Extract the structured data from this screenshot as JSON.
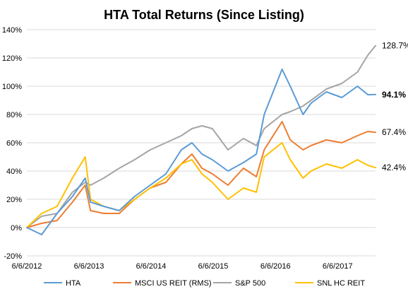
{
  "chart_data": {
    "type": "line",
    "title": "HTA Total Returns (Since Listing)",
    "xlabel": "",
    "ylabel": "",
    "ylim": [
      -20,
      140
    ],
    "y_ticks": [
      "-20%",
      "0%",
      "20%",
      "40%",
      "60%",
      "80%",
      "100%",
      "120%",
      "140%"
    ],
    "x_ticks": [
      "6/6/2012",
      "6/6/2013",
      "6/6/2014",
      "6/6/2015",
      "6/6/2016",
      "6/6/2017"
    ],
    "x_range": [
      "2012-06-06",
      "2018-01-15"
    ],
    "grid": "horizontal",
    "legend_position": "bottom",
    "x": [
      "2012-06-06",
      "2012-09-01",
      "2012-12-01",
      "2013-03-01",
      "2013-05-15",
      "2013-06-15",
      "2013-09-01",
      "2013-12-01",
      "2014-03-01",
      "2014-06-01",
      "2014-09-01",
      "2014-12-01",
      "2015-02-01",
      "2015-04-01",
      "2015-06-01",
      "2015-09-01",
      "2015-12-01",
      "2016-02-15",
      "2016-04-01",
      "2016-07-15",
      "2016-09-01",
      "2016-11-15",
      "2017-01-01",
      "2017-04-01",
      "2017-07-01",
      "2017-10-01",
      "2017-12-01",
      "2018-01-15"
    ],
    "series": [
      {
        "name": "HTA",
        "color": "#5B9BD5",
        "values": [
          0,
          -5,
          10,
          22,
          35,
          18,
          15,
          12,
          22,
          30,
          38,
          55,
          60,
          52,
          48,
          40,
          46,
          52,
          80,
          112,
          100,
          80,
          88,
          96,
          92,
          100,
          94,
          94.1
        ],
        "end_label": "94.1%",
        "end_label_bold": true
      },
      {
        "name": "MSCI US REIT (RMS)",
        "color": "#ED7D31",
        "values": [
          0,
          3,
          5,
          18,
          30,
          12,
          10,
          10,
          20,
          28,
          32,
          45,
          52,
          42,
          38,
          30,
          42,
          36,
          55,
          75,
          62,
          55,
          58,
          62,
          60,
          65,
          68,
          67.4
        ],
        "end_label": "67.4%",
        "end_label_bold": false
      },
      {
        "name": "S&P 500",
        "color": "#A5A5A5",
        "values": [
          0,
          8,
          10,
          25,
          32,
          30,
          35,
          42,
          48,
          55,
          60,
          65,
          70,
          72,
          70,
          55,
          63,
          58,
          70,
          80,
          82,
          86,
          90,
          98,
          102,
          110,
          122,
          128.7
        ],
        "end_label": "128.7%",
        "end_label_bold": false
      },
      {
        "name": "SNL HC REIT",
        "color": "#FFC000",
        "values": [
          0,
          10,
          15,
          35,
          50,
          20,
          15,
          12,
          20,
          28,
          35,
          45,
          48,
          38,
          32,
          20,
          28,
          25,
          50,
          60,
          48,
          35,
          40,
          45,
          42,
          48,
          44,
          42.4
        ],
        "end_label": "42.4%",
        "end_label_bold": false
      }
    ]
  }
}
